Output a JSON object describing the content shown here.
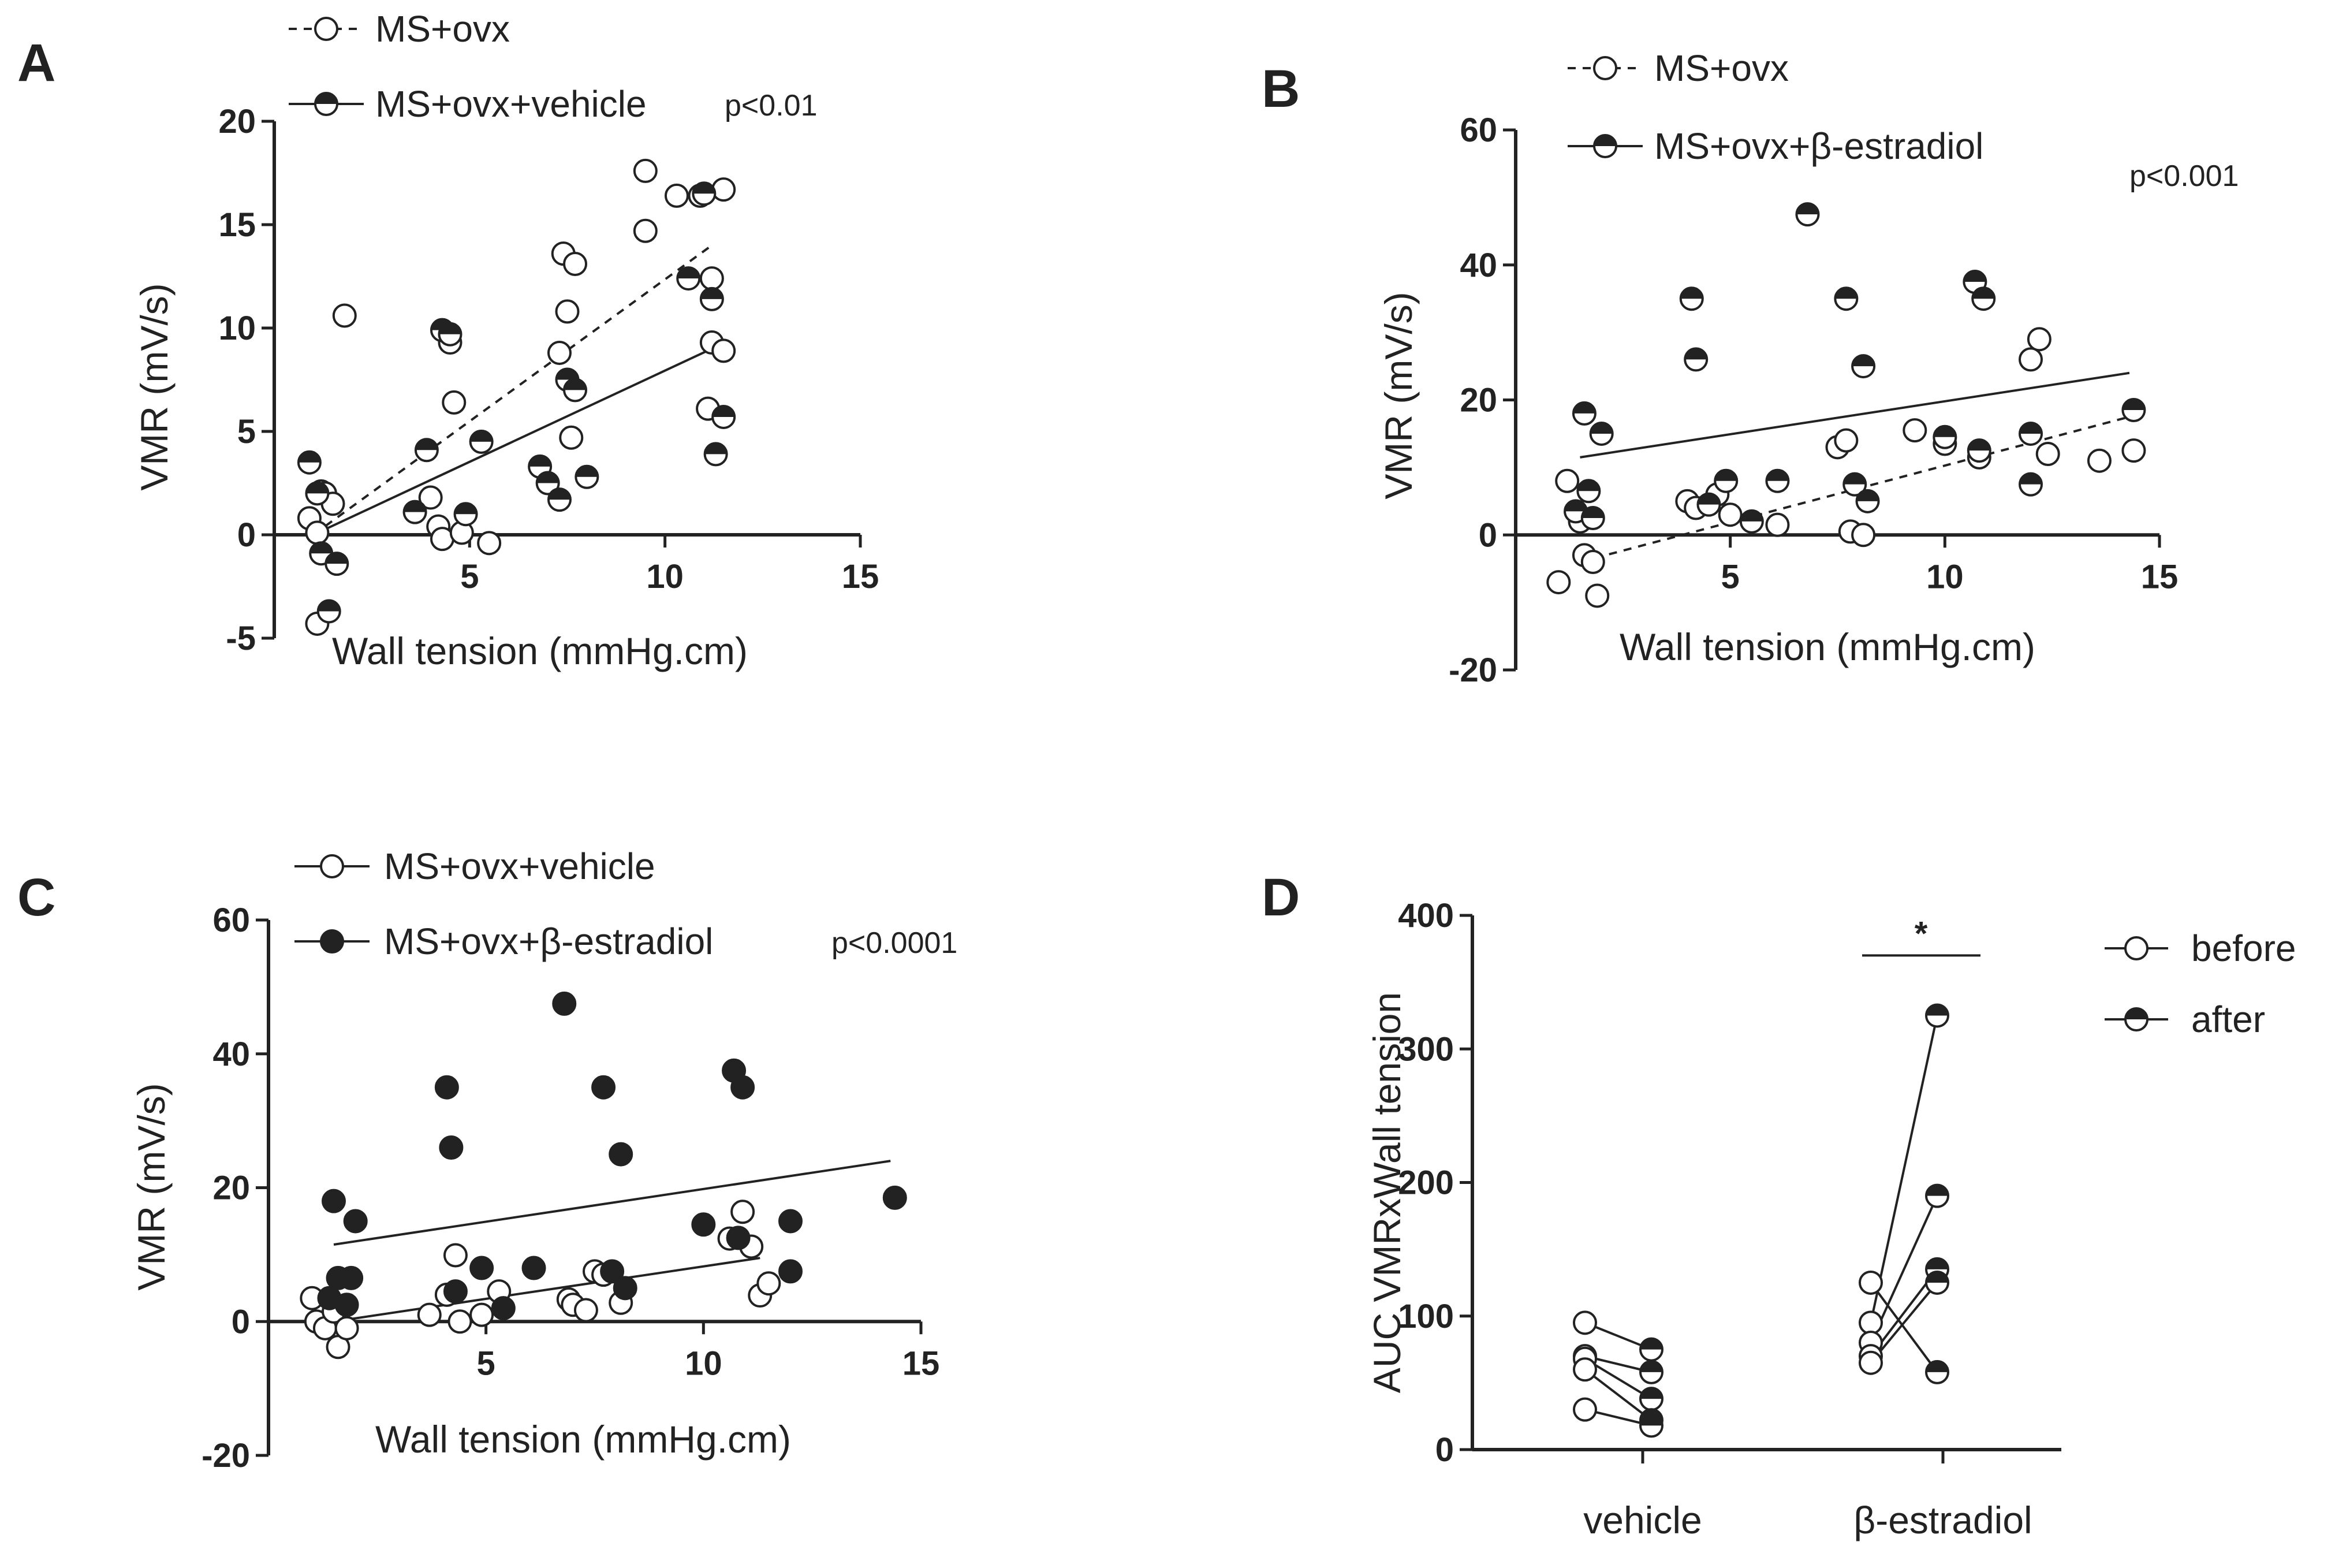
{
  "chart_data": [
    {
      "panel": "A",
      "type": "scatter",
      "xlabel": "Wall tension (mmHg.cm)",
      "ylabel": "VMR (mV/s)",
      "xlim": [
        0,
        15
      ],
      "ylim": [
        -5,
        20
      ],
      "xticks": [
        "5",
        "10",
        "15"
      ],
      "yticks": [
        "-5",
        "0",
        "5",
        "10",
        "15",
        "20"
      ],
      "annotation": "p<0.01",
      "legend": {
        "position": "top-left"
      },
      "series": [
        {
          "name": "MS+ovx",
          "marker": "open",
          "line": "dashed",
          "fit": [
            [
              1.0,
              0.0
            ],
            [
              11.2,
              14.0
            ]
          ],
          "points": [
            [
              0.9,
              0.8
            ],
            [
              1.1,
              0.1
            ],
            [
              1.2,
              2.1
            ],
            [
              1.3,
              2.0
            ],
            [
              1.5,
              1.5
            ],
            [
              1.1,
              -4.3
            ],
            [
              1.8,
              10.6
            ],
            [
              4.0,
              1.8
            ],
            [
              4.2,
              0.4
            ],
            [
              4.5,
              9.3
            ],
            [
              4.6,
              6.4
            ],
            [
              4.3,
              -0.2
            ],
            [
              5.5,
              -0.4
            ],
            [
              7.3,
              8.8
            ],
            [
              7.4,
              13.6
            ],
            [
              7.5,
              10.8
            ],
            [
              7.6,
              4.7
            ],
            [
              7.7,
              13.1
            ],
            [
              9.5,
              17.6
            ],
            [
              9.5,
              14.7
            ],
            [
              10.3,
              16.4
            ],
            [
              10.9,
              16.4
            ],
            [
              11.2,
              12.4
            ],
            [
              11.5,
              16.7
            ],
            [
              11.1,
              6.1
            ],
            [
              11.2,
              9.3
            ],
            [
              11.5,
              8.9
            ],
            [
              4.8,
              0.1
            ]
          ]
        },
        {
          "name": "MS+ovx+vehicle",
          "marker": "half",
          "line": "solid",
          "fit": [
            [
              1.0,
              0.0
            ],
            [
              11.2,
              9.0
            ]
          ],
          "points": [
            [
              0.9,
              3.5
            ],
            [
              1.1,
              2.0
            ],
            [
              1.2,
              -0.9
            ],
            [
              1.6,
              -1.4
            ],
            [
              1.4,
              -3.7
            ],
            [
              3.6,
              1.1
            ],
            [
              3.9,
              4.1
            ],
            [
              4.3,
              9.9
            ],
            [
              4.5,
              9.7
            ],
            [
              4.9,
              1.0
            ],
            [
              5.3,
              4.5
            ],
            [
              6.8,
              3.3
            ],
            [
              7.0,
              2.5
            ],
            [
              7.3,
              1.7
            ],
            [
              7.5,
              7.5
            ],
            [
              7.7,
              7.0
            ],
            [
              8.0,
              2.8
            ],
            [
              10.6,
              12.4
            ],
            [
              11.0,
              16.5
            ],
            [
              11.2,
              11.4
            ],
            [
              11.3,
              3.9
            ],
            [
              11.5,
              5.7
            ]
          ]
        }
      ]
    },
    {
      "panel": "B",
      "type": "scatter",
      "xlabel": "Wall tension (mmHg.cm)",
      "ylabel": "VMR (mV/s)",
      "xlim": [
        0,
        15
      ],
      "ylim": [
        -20,
        60
      ],
      "xticks": [
        "5",
        "10",
        "15"
      ],
      "yticks": [
        "-20",
        "0",
        "20",
        "40",
        "60"
      ],
      "annotation": "p<0.001",
      "legend": {
        "position": "top-left"
      },
      "series": [
        {
          "name": "MS+ovx",
          "marker": "open",
          "line": "dashed",
          "fit": [
            [
              1.5,
              -4.0
            ],
            [
              14.3,
              17.5
            ]
          ],
          "points": [
            [
              1.0,
              -7.0
            ],
            [
              1.2,
              8.0
            ],
            [
              1.5,
              2.0
            ],
            [
              1.6,
              -3.0
            ],
            [
              1.8,
              -4.0
            ],
            [
              1.9,
              -9.0
            ],
            [
              4.0,
              5.0
            ],
            [
              4.2,
              4.0
            ],
            [
              4.7,
              6.0
            ],
            [
              5.0,
              3.0
            ],
            [
              6.1,
              1.5
            ],
            [
              7.5,
              13.0
            ],
            [
              7.7,
              14.0
            ],
            [
              7.8,
              0.5
            ],
            [
              8.1,
              0.0
            ],
            [
              9.3,
              15.5
            ],
            [
              10.0,
              13.5
            ],
            [
              10.8,
              11.5
            ],
            [
              12.2,
              29.0
            ],
            [
              12.4,
              12.0
            ],
            [
              13.6,
              11.0
            ],
            [
              14.4,
              12.5
            ],
            [
              12.0,
              26.0
            ]
          ]
        },
        {
          "name": "MS+ovx+β-estradiol",
          "marker": "half",
          "line": "solid",
          "fit": [
            [
              1.5,
              11.5
            ],
            [
              14.3,
              24.0
            ]
          ],
          "points": [
            [
              1.4,
              3.5
            ],
            [
              1.6,
              18.0
            ],
            [
              1.7,
              6.5
            ],
            [
              1.8,
              2.5
            ],
            [
              2.0,
              15.0
            ],
            [
              4.1,
              35.0
            ],
            [
              4.2,
              26.0
            ],
            [
              4.5,
              4.5
            ],
            [
              4.9,
              8.0
            ],
            [
              5.5,
              2.0
            ],
            [
              6.1,
              8.0
            ],
            [
              6.8,
              47.5
            ],
            [
              7.7,
              35.0
            ],
            [
              7.9,
              7.5
            ],
            [
              8.1,
              25.0
            ],
            [
              8.2,
              5.0
            ],
            [
              10.0,
              14.5
            ],
            [
              10.7,
              37.5
            ],
            [
              10.8,
              12.5
            ],
            [
              10.9,
              35.0
            ],
            [
              12.0,
              15.0
            ],
            [
              12.0,
              7.5
            ],
            [
              14.4,
              18.5
            ]
          ]
        }
      ]
    },
    {
      "panel": "C",
      "type": "scatter",
      "xlabel": "Wall tension (mmHg.cm)",
      "ylabel": "VMR (mV/s)",
      "xlim": [
        0,
        15
      ],
      "ylim": [
        -20,
        60
      ],
      "xticks": [
        "5",
        "10",
        "15"
      ],
      "yticks": [
        "-20",
        "0",
        "20",
        "40",
        "60"
      ],
      "annotation": "p<0.0001",
      "legend": {
        "position": "top-left"
      },
      "series": [
        {
          "name": "MS+ovx+vehicle",
          "marker": "open",
          "line": "solid",
          "fit": [
            [
              1.5,
              0.0
            ],
            [
              11.3,
              9.5
            ]
          ],
          "points": [
            [
              1.0,
              3.5
            ],
            [
              1.1,
              0.0
            ],
            [
              1.3,
              -1.0
            ],
            [
              1.5,
              1.5
            ],
            [
              1.6,
              -3.8
            ],
            [
              1.8,
              -1.0
            ],
            [
              3.7,
              1.0
            ],
            [
              4.1,
              4.0
            ],
            [
              4.3,
              9.9
            ],
            [
              4.4,
              0.0
            ],
            [
              4.9,
              1.0
            ],
            [
              5.3,
              4.5
            ],
            [
              6.9,
              3.3
            ],
            [
              7.0,
              2.5
            ],
            [
              7.3,
              1.7
            ],
            [
              7.5,
              7.5
            ],
            [
              7.7,
              7.0
            ],
            [
              8.1,
              2.8
            ],
            [
              10.6,
              12.4
            ],
            [
              10.9,
              16.4
            ],
            [
              11.1,
              11.2
            ],
            [
              11.3,
              3.9
            ],
            [
              11.5,
              5.7
            ]
          ]
        },
        {
          "name": "MS+ovx+β-estradiol",
          "marker": "filled",
          "line": "solid",
          "fit": [
            [
              1.5,
              11.5
            ],
            [
              14.3,
              24.0
            ]
          ],
          "points": [
            [
              1.4,
              3.5
            ],
            [
              1.5,
              18.0
            ],
            [
              1.6,
              6.5
            ],
            [
              1.8,
              2.5
            ],
            [
              1.9,
              6.5
            ],
            [
              2.0,
              15.0
            ],
            [
              4.1,
              35.0
            ],
            [
              4.2,
              26.0
            ],
            [
              4.3,
              4.5
            ],
            [
              4.9,
              8.0
            ],
            [
              5.4,
              2.0
            ],
            [
              6.1,
              8.0
            ],
            [
              6.8,
              47.5
            ],
            [
              7.7,
              35.0
            ],
            [
              7.9,
              7.5
            ],
            [
              8.1,
              25.0
            ],
            [
              8.2,
              5.0
            ],
            [
              10.0,
              14.5
            ],
            [
              10.7,
              37.5
            ],
            [
              10.8,
              12.5
            ],
            [
              10.9,
              35.0
            ],
            [
              12.0,
              15.0
            ],
            [
              12.0,
              7.5
            ],
            [
              14.4,
              18.5
            ]
          ]
        }
      ]
    },
    {
      "panel": "D",
      "type": "scatter",
      "xlabel": "",
      "ylabel": "AUC VMRxWall tension",
      "ylim": [
        0,
        400
      ],
      "categories": [
        "vehicle",
        "β-estradiol"
      ],
      "yticks": [
        "0",
        "100",
        "200",
        "300",
        "400"
      ],
      "annotation": "*",
      "legend": {
        "position": "top-right"
      },
      "series": [
        {
          "name": "before",
          "marker": "open"
        },
        {
          "name": "after",
          "marker": "half"
        }
      ],
      "pairs": [
        {
          "group": "vehicle",
          "before": [
            95,
            70,
            68,
            60,
            30
          ],
          "after": [
            75,
            58,
            38,
            22,
            18
          ]
        },
        {
          "group": "β-estradiol",
          "before": [
            125,
            95,
            80,
            70,
            65
          ],
          "after": [
            58,
            325,
            190,
            135,
            125
          ]
        }
      ]
    }
  ]
}
